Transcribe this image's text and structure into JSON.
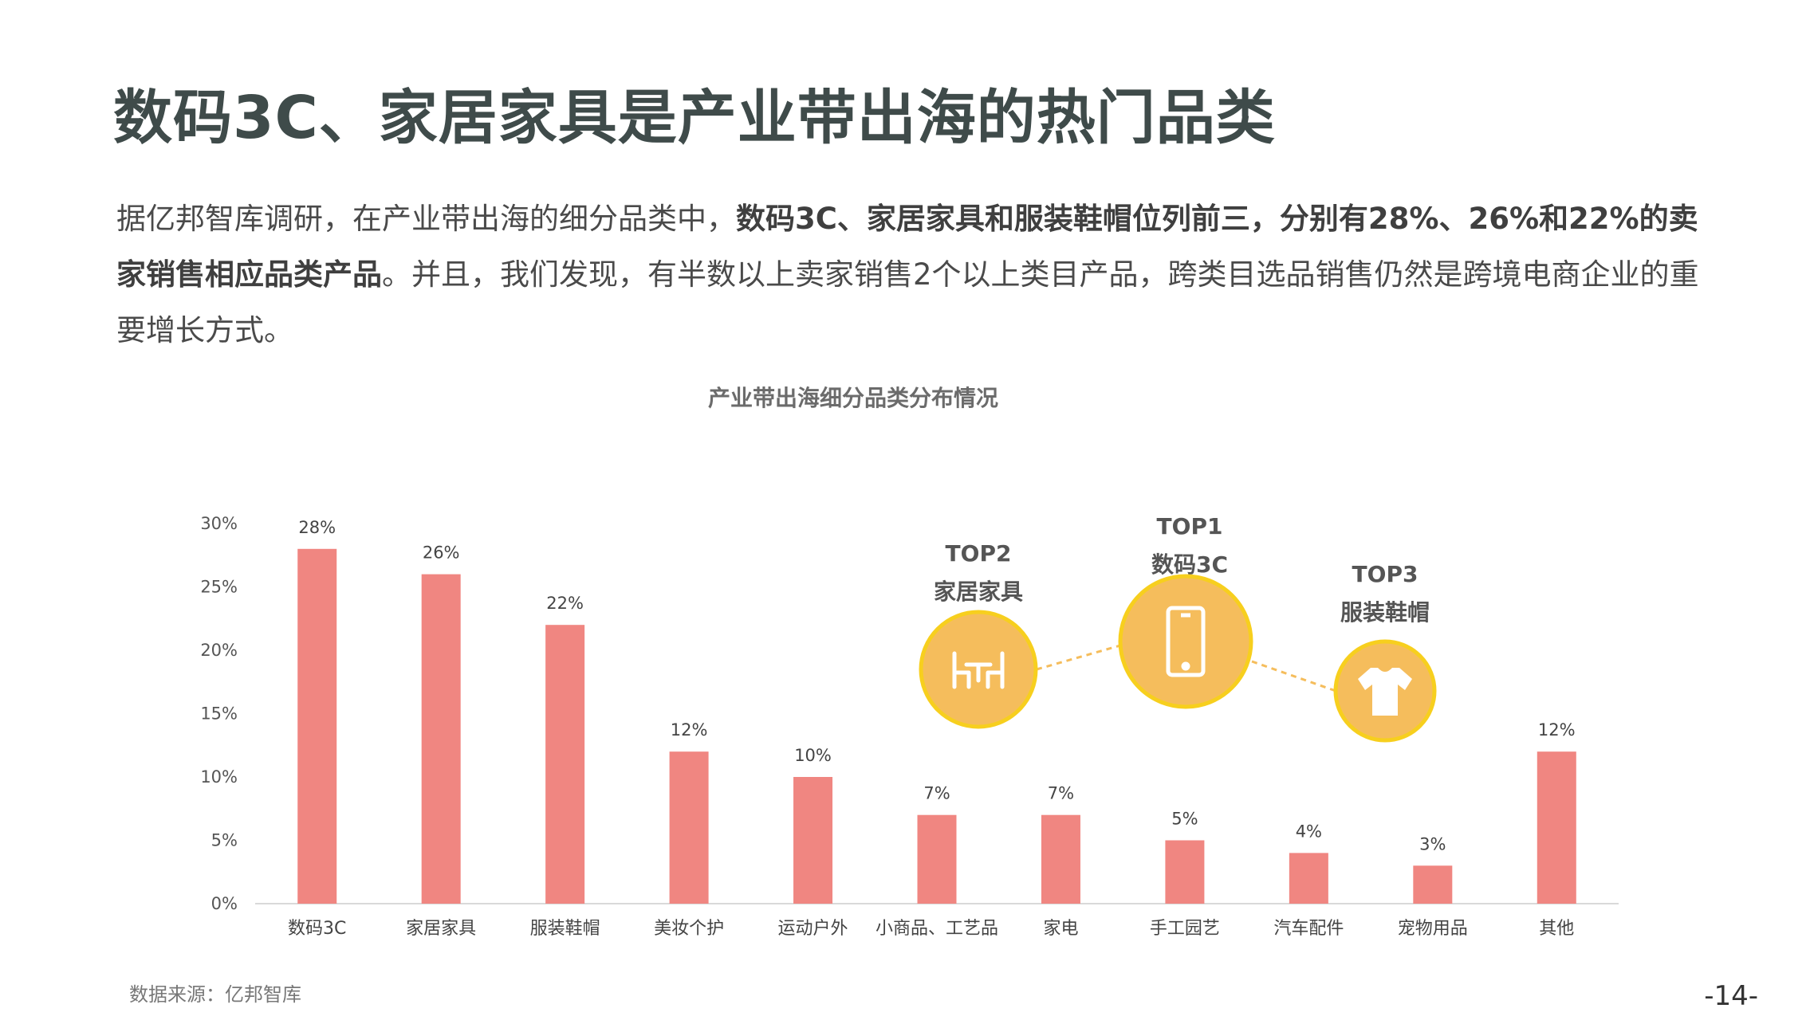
{
  "title": "数码3C、家居家具是产业带出海的热门品类",
  "paragraph": {
    "part1": "据亿邦智库调研，在产业带出海的细分品类中，",
    "bold1": "数码3C、家居家具和服装鞋帽位列前三，分别有28%、26%和22%的卖家销售相应品类产品",
    "part2": "。并且，我们发现，有半数以上卖家销售2个以上类目产品，跨类目选品销售仍然是跨境电商企业的重要增长方式。"
  },
  "chart_data": {
    "type": "bar",
    "title": "产业带出海细分品类分布情况",
    "categories": [
      "数码3C",
      "家居家具",
      "服装鞋帽",
      "美妆个护",
      "运动户外",
      "小商品、工艺品",
      "家电",
      "手工园艺",
      "汽车配件",
      "宠物用品",
      "其他"
    ],
    "values": [
      28,
      26,
      22,
      12,
      10,
      7,
      7,
      5,
      4,
      3,
      12
    ],
    "value_labels": [
      "28%",
      "26%",
      "22%",
      "12%",
      "10%",
      "7%",
      "7%",
      "5%",
      "4%",
      "3%",
      "12%"
    ],
    "y_ticks": [
      "0%",
      "5%",
      "10%",
      "15%",
      "20%",
      "25%",
      "30%"
    ],
    "ylim": [
      0,
      30
    ],
    "bar_color": "#f08681",
    "grid": false
  },
  "top_callouts": [
    {
      "rank": "TOP1",
      "name": "数码3C",
      "icon": "smartphone-icon"
    },
    {
      "rank": "TOP2",
      "name": "家居家具",
      "icon": "dining-table-icon"
    },
    {
      "rank": "TOP3",
      "name": "服装鞋帽",
      "icon": "tshirt-icon"
    }
  ],
  "callout_colors": {
    "fill": "#f5bd5c",
    "ring": "#f7cf1e",
    "connector": "#f5bd5c"
  },
  "source": "数据来源：亿邦智库",
  "page_number": "-14-"
}
